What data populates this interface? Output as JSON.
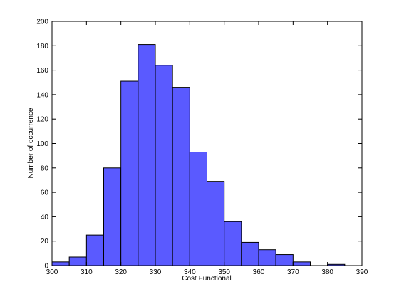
{
  "chart_data": {
    "type": "histogram",
    "xlabel": "Cost Functional",
    "ylabel": "Number of occurrence",
    "bins": [
      300,
      305,
      310,
      315,
      320,
      325,
      330,
      335,
      340,
      345,
      350,
      355,
      360,
      365,
      370,
      375,
      380,
      385
    ],
    "values": [
      3,
      7,
      25,
      80,
      151,
      181,
      164,
      146,
      93,
      69,
      36,
      19,
      13,
      9,
      3,
      0,
      1
    ],
    "color": "#5a5aff",
    "xlim": [
      300,
      390
    ],
    "xticks": [
      300,
      310,
      320,
      330,
      340,
      350,
      360,
      370,
      380,
      390
    ],
    "ylim": [
      0,
      200
    ],
    "yticks": [
      0,
      20,
      40,
      60,
      80,
      100,
      120,
      140,
      160,
      180,
      200
    ]
  }
}
